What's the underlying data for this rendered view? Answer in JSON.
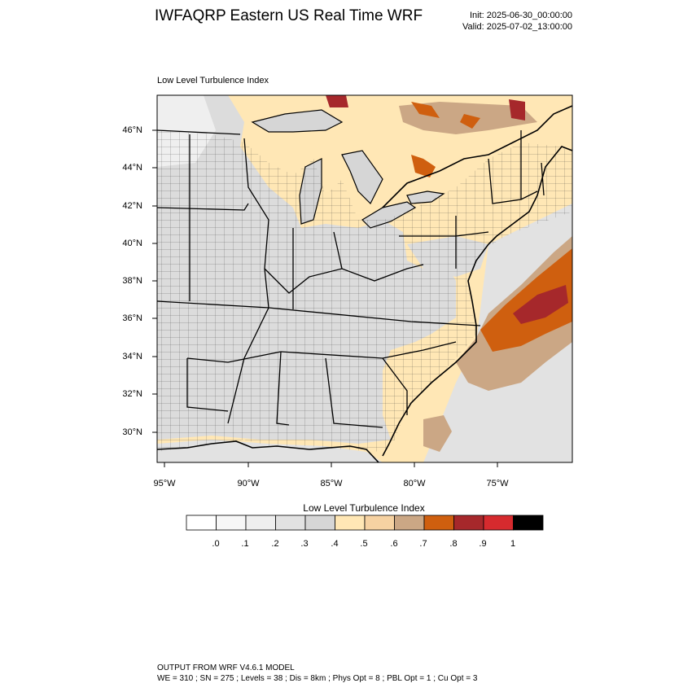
{
  "header": {
    "title": "IWFAQRP Eastern US Real Time WRF",
    "init": "Init: 2025-06-30_00:00:00",
    "valid": "Valid: 2025-07-02_13:00:00"
  },
  "map": {
    "subtitle": "Low Level Turbulence Index",
    "lat_labels": [
      "46°N",
      "44°N",
      "42°N",
      "40°N",
      "38°N",
      "36°N",
      "34°N",
      "32°N",
      "30°N"
    ],
    "lon_labels": [
      "95°W",
      "90°W",
      "85°W",
      "80°W",
      "75°W"
    ]
  },
  "legend": {
    "title": "Low Level Turbulence Index",
    "labels": [
      ".0",
      ".1",
      ".2",
      ".3",
      ".4",
      ".5",
      ".6",
      ".7",
      ".8",
      ".9",
      "1"
    ],
    "colors": [
      "#ffffff",
      "#f7f7f7",
      "#efefef",
      "#e2e2e2",
      "#d6d6d6",
      "#ffe7b5",
      "#f6d2a2",
      "#cba785",
      "#cf5f0f",
      "#a6282b",
      "#d62a2e",
      "#000000"
    ]
  },
  "footer": {
    "line1": "OUTPUT FROM WRF V4.6.1 MODEL",
    "line2": "WE = 310 ; SN = 275 ; Levels = 38 ; Dis = 8km ; Phys Opt = 8 ; PBL Opt = 1 ; Cu Opt = 3"
  }
}
